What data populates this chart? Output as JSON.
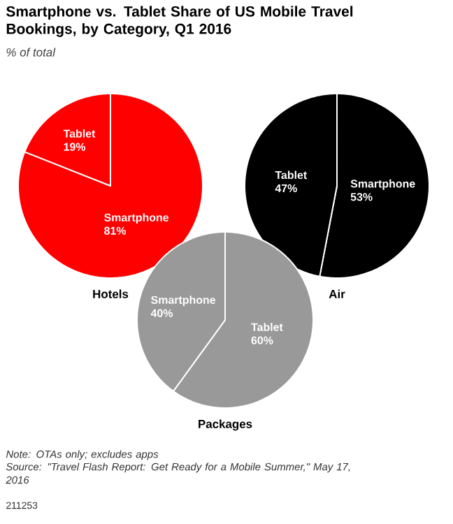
{
  "chart_data": [
    {
      "type": "other",
      "title": "Smartphone vs. Tablet Share of US Mobile Travel Bookings, by Category, Q1 2016",
      "subtitle": "% of total",
      "annotations": [
        "Note: OTAs only; excludes apps",
        "Source: \"Travel Flash Report: Get Ready for a Mobile Summer,\" May 17, 2016",
        "211253"
      ]
    },
    {
      "type": "pie",
      "title": "Hotels",
      "categories": [
        "Smartphone",
        "Tablet"
      ],
      "values": [
        81,
        19
      ],
      "value_labels": [
        "81%",
        "19%"
      ],
      "colors": [
        "#ff0000",
        "#ff0000"
      ]
    },
    {
      "type": "pie",
      "title": "Air",
      "categories": [
        "Smartphone",
        "Tablet"
      ],
      "values": [
        53,
        47
      ],
      "value_labels": [
        "53%",
        "47%"
      ],
      "colors": [
        "#000000",
        "#000000"
      ]
    },
    {
      "type": "pie",
      "title": "Packages",
      "categories": [
        "Tablet",
        "Smartphone"
      ],
      "values": [
        60,
        40
      ],
      "value_labels": [
        "60%",
        "40%"
      ],
      "colors": [
        "#999999",
        "#999999"
      ]
    }
  ]
}
